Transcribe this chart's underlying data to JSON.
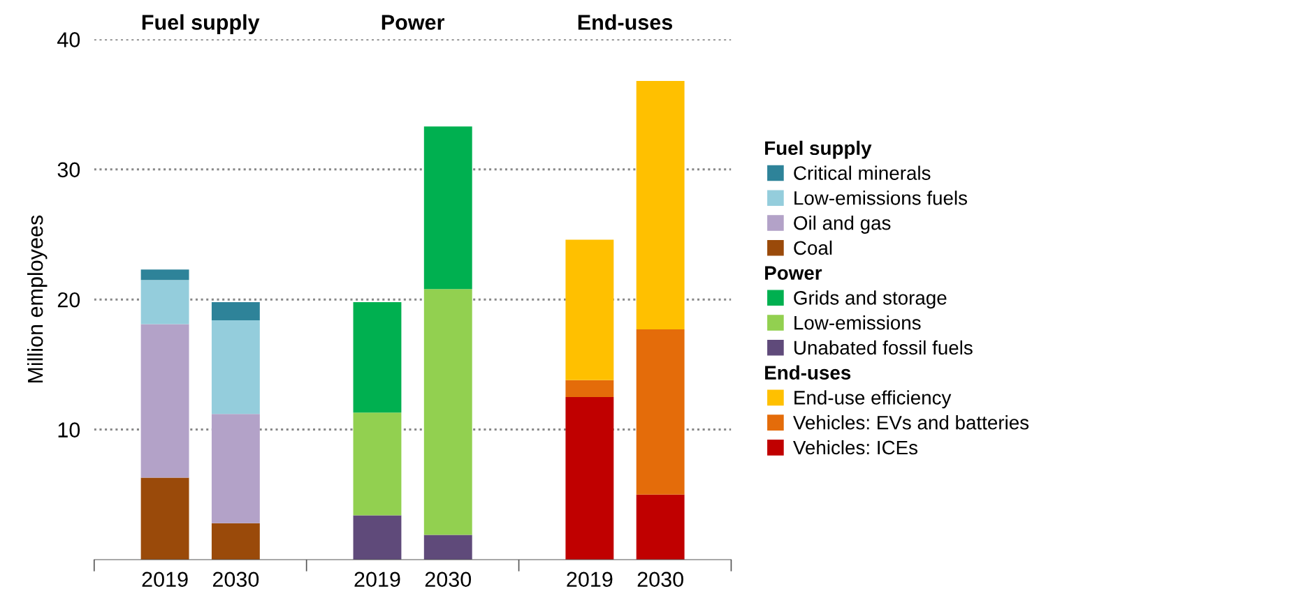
{
  "chart_data": {
    "type": "bar",
    "stacked": true,
    "ylabel": "Million employees",
    "categories": [
      "2019",
      "2030",
      "2019",
      "2030",
      "2019",
      "2030"
    ],
    "annotations": [
      "Fuel supply",
      "Power",
      "End-uses"
    ],
    "series": [
      {
        "name": "Coal",
        "color": "#9a4a0a",
        "values": [
          6.3,
          2.8,
          null,
          null,
          null,
          null
        ]
      },
      {
        "name": "Oil and gas",
        "color": "#b3a2c8",
        "values": [
          11.8,
          8.4,
          null,
          null,
          null,
          null
        ]
      },
      {
        "name": "Low-emissions fuels",
        "color": "#94cddc",
        "values": [
          3.4,
          7.2,
          null,
          null,
          null,
          null
        ]
      },
      {
        "name": "Critical minerals",
        "color": "#2e8399",
        "values": [
          0.8,
          1.4,
          null,
          null,
          null,
          null
        ]
      },
      {
        "name": "Unabated fossil fuels",
        "color": "#5f4a7a",
        "values": [
          null,
          null,
          3.4,
          1.9,
          null,
          null
        ]
      },
      {
        "name": "Low-emissions",
        "color": "#92d050",
        "values": [
          null,
          null,
          7.9,
          18.9,
          null,
          null
        ]
      },
      {
        "name": "Grids and storage",
        "color": "#00b050",
        "values": [
          null,
          null,
          8.5,
          12.5,
          null,
          null
        ]
      },
      {
        "name": "Vehicles: ICEs",
        "color": "#c00000",
        "values": [
          null,
          null,
          null,
          null,
          12.5,
          5.0
        ]
      },
      {
        "name": "Vehicles: EVs and batteries",
        "color": "#e46c0a",
        "values": [
          null,
          null,
          null,
          null,
          1.3,
          12.7
        ]
      },
      {
        "name": "End-use efficiency",
        "color": "#ffc000",
        "values": [
          null,
          null,
          null,
          null,
          10.8,
          19.1
        ]
      }
    ],
    "ylim": [
      0,
      40
    ],
    "yticks": [
      10,
      20,
      30,
      40
    ],
    "grid": "y",
    "legend": "right"
  }
}
